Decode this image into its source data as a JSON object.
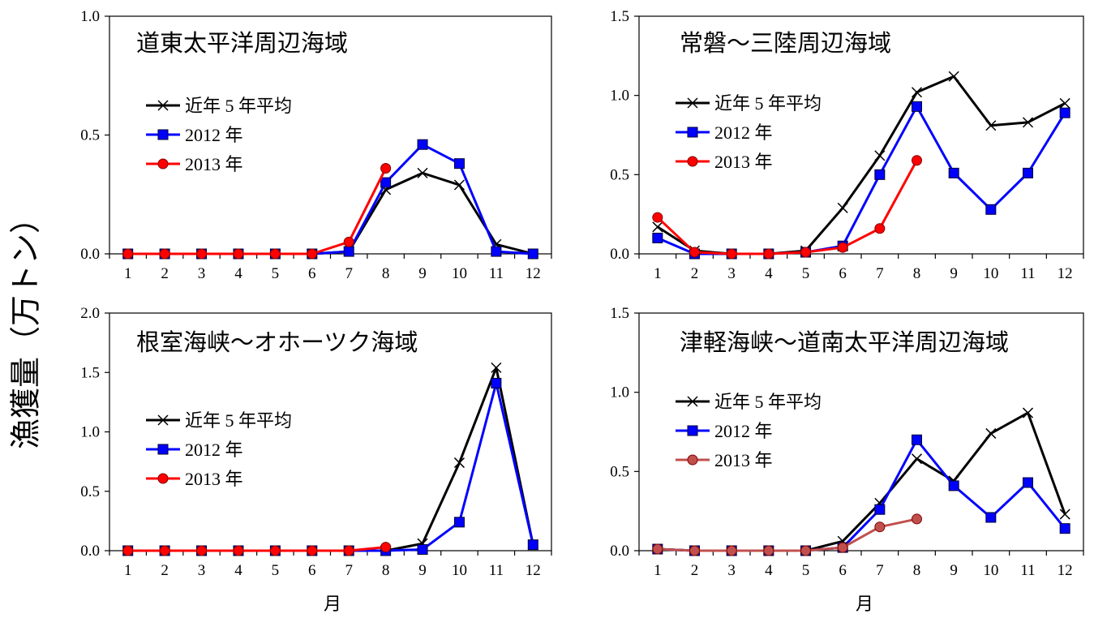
{
  "figure": {
    "ylabel": "漁獲量（万トン）",
    "xlabel": "月"
  },
  "chart_data": [
    {
      "type": "line",
      "title": "道東太平洋周辺海域",
      "xlabel": "",
      "ylabel": "",
      "categories": [
        "1",
        "2",
        "3",
        "4",
        "5",
        "6",
        "7",
        "8",
        "9",
        "10",
        "11",
        "12"
      ],
      "ylim": [
        0,
        1.0
      ],
      "yticks": [
        "0.0",
        "0.5",
        "1.0"
      ],
      "legend": "upper-left",
      "series": [
        {
          "name": "近年 5 年平均",
          "color": "#000000",
          "marker": "x",
          "values": [
            0,
            0,
            0,
            0,
            0,
            0,
            0.01,
            0.27,
            0.34,
            0.29,
            0.04,
            0
          ]
        },
        {
          "name": "2012 年",
          "color": "#0000ff",
          "marker": "square",
          "values": [
            0,
            0,
            0,
            0,
            0,
            0,
            0.01,
            0.3,
            0.46,
            0.38,
            0.01,
            0
          ]
        },
        {
          "name": "2013 年",
          "color": "#ff0000",
          "marker": "circle",
          "values": [
            0,
            0,
            0,
            0,
            0,
            0,
            0.05,
            0.36,
            null,
            null,
            null,
            null
          ]
        }
      ]
    },
    {
      "type": "line",
      "title": "常磐～三陸周辺海域",
      "xlabel": "",
      "ylabel": "",
      "categories": [
        "1",
        "2",
        "3",
        "4",
        "5",
        "6",
        "7",
        "8",
        "9",
        "10",
        "11",
        "12"
      ],
      "ylim": [
        0,
        1.5
      ],
      "yticks": [
        "0.0",
        "0.5",
        "1.0",
        "1.5"
      ],
      "legend": "upper-left",
      "series": [
        {
          "name": "近年 5 年平均",
          "color": "#000000",
          "marker": "x",
          "values": [
            0.17,
            0.02,
            0,
            0,
            0.02,
            0.29,
            0.62,
            1.02,
            1.12,
            0.81,
            0.83,
            0.95
          ]
        },
        {
          "name": "2012 年",
          "color": "#0000ff",
          "marker": "square",
          "values": [
            0.1,
            0,
            0,
            0,
            0.01,
            0.05,
            0.5,
            0.93,
            0.51,
            0.28,
            0.51,
            0.89
          ]
        },
        {
          "name": "2013 年",
          "color": "#ff0000",
          "marker": "circle",
          "values": [
            0.23,
            0.01,
            0,
            0,
            0.01,
            0.04,
            0.16,
            0.59,
            null,
            null,
            null,
            null
          ]
        }
      ]
    },
    {
      "type": "line",
      "title": "根室海峡～オホーツク海域",
      "xlabel": "月",
      "ylabel": "",
      "categories": [
        "1",
        "2",
        "3",
        "4",
        "5",
        "6",
        "7",
        "8",
        "9",
        "10",
        "11",
        "12"
      ],
      "ylim": [
        0,
        2.0
      ],
      "yticks": [
        "0.0",
        "0.5",
        "1.0",
        "1.5",
        "2.0"
      ],
      "legend": "center-left",
      "series": [
        {
          "name": "近年 5 年平均",
          "color": "#000000",
          "marker": "x",
          "values": [
            0,
            0,
            0,
            0,
            0,
            0,
            0,
            0,
            0.06,
            0.74,
            1.54,
            0.05
          ]
        },
        {
          "name": "2012 年",
          "color": "#0000ff",
          "marker": "square",
          "values": [
            0,
            0,
            0,
            0,
            0,
            0,
            0,
            0,
            0.01,
            0.24,
            1.41,
            0.05
          ]
        },
        {
          "name": "2013 年",
          "color": "#ff0000",
          "marker": "circle",
          "values": [
            0,
            0,
            0,
            0,
            0,
            0,
            0,
            0.03,
            null,
            null,
            null,
            null
          ]
        }
      ]
    },
    {
      "type": "line",
      "title": "津軽海峡～道南太平洋周辺海域",
      "xlabel": "月",
      "ylabel": "",
      "categories": [
        "1",
        "2",
        "3",
        "4",
        "5",
        "6",
        "7",
        "8",
        "9",
        "10",
        "11",
        "12"
      ],
      "ylim": [
        0,
        1.5
      ],
      "yticks": [
        "0.0",
        "0.5",
        "1.0",
        "1.5"
      ],
      "legend": "center-left",
      "series": [
        {
          "name": "近年 5 年平均",
          "color": "#000000",
          "marker": "x",
          "values": [
            0.01,
            0,
            0,
            0,
            0,
            0.06,
            0.3,
            0.58,
            0.44,
            0.74,
            0.87,
            0.23
          ]
        },
        {
          "name": "2012 年",
          "color": "#0000ff",
          "marker": "square",
          "values": [
            0.01,
            0,
            0,
            0,
            0,
            0.02,
            0.26,
            0.7,
            0.41,
            0.21,
            0.43,
            0.14
          ]
        },
        {
          "name": "2013 年",
          "color": "#c0504d",
          "marker": "circle",
          "values": [
            0.01,
            0,
            0,
            0,
            0,
            0.02,
            0.15,
            0.2,
            null,
            null,
            null,
            null
          ]
        }
      ]
    }
  ]
}
